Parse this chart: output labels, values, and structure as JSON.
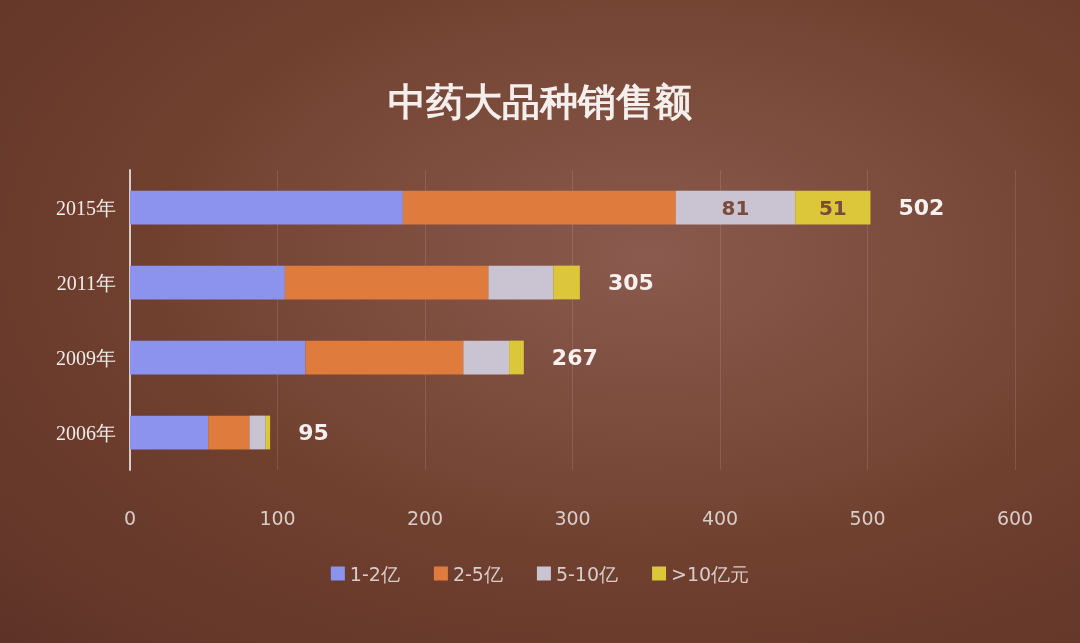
{
  "chart_data": {
    "type": "bar",
    "orientation": "horizontal",
    "stacked": true,
    "title": "中药大品种销售额",
    "categories": [
      "2015年",
      "2011年",
      "2009年",
      "2006年"
    ],
    "series": [
      {
        "name": "1-2亿",
        "color": "#8b93ef",
        "values": [
          185,
          105,
          119,
          53
        ]
      },
      {
        "name": "2-5亿",
        "color": "#e07b3e",
        "values": [
          185,
          138,
          107,
          28
        ]
      },
      {
        "name": "5-10亿",
        "color": "#c9c3d2",
        "values": [
          81,
          44,
          31,
          11
        ],
        "value_labels": [
          "81",
          null,
          null,
          null
        ]
      },
      {
        "name": ">10亿元",
        "color": "#dcc63a",
        "values": [
          51,
          18,
          10,
          3
        ],
        "value_labels": [
          "51",
          null,
          null,
          null
        ]
      }
    ],
    "totals": [
      "502",
      "305",
      "267",
      "95"
    ],
    "xlim": [
      0,
      600
    ],
    "xticks": [
      0,
      100,
      200,
      300,
      400,
      500,
      600
    ],
    "grid": "x",
    "legend": "bottom"
  }
}
